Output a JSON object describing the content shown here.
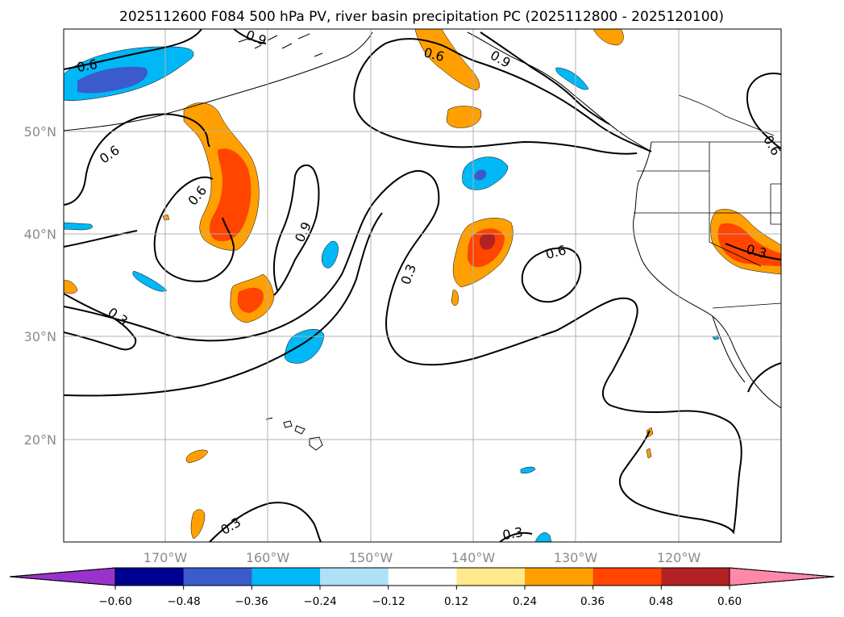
{
  "title": "2025112600 F084 500 hPa PV, river basin precipitation PC (2025112800 - 2025120100)",
  "map": {
    "lat_ticks": [
      "50°N",
      "40°N",
      "30°N",
      "20°N"
    ],
    "lon_ticks": [
      "170°W",
      "160°W",
      "150°W",
      "140°W",
      "130°W",
      "120°W"
    ],
    "gridlines": true
  },
  "contours": {
    "color": "#000000",
    "labels": [
      "0.6",
      "0.9",
      "0.6",
      "0.9",
      "0.6",
      "0.6",
      "0.9",
      "0.3",
      "0.3",
      "0.6",
      "0.3",
      "0.6",
      "0.3",
      "0.3"
    ]
  },
  "colorbar": {
    "orientation": "horizontal",
    "extend": "both",
    "ticks": [
      "−0.60",
      "−0.48",
      "−0.36",
      "−0.24",
      "−0.12",
      "0.12",
      "0.24",
      "0.36",
      "0.48",
      "0.60"
    ],
    "colors": [
      "#9933cc",
      "#000090",
      "#3b5bcc",
      "#00b8f5",
      "#aee0f8",
      "#ffffff",
      "#ffe98a",
      "#ffa000",
      "#ff4500",
      "#b22222",
      "#ff88aa"
    ]
  },
  "fill_colors": {
    "orange": "#ffa000",
    "red_orange": "#ff4500",
    "dark_red": "#b22222",
    "light_blue": "#00b8f5",
    "blue": "#3b5bcc"
  }
}
